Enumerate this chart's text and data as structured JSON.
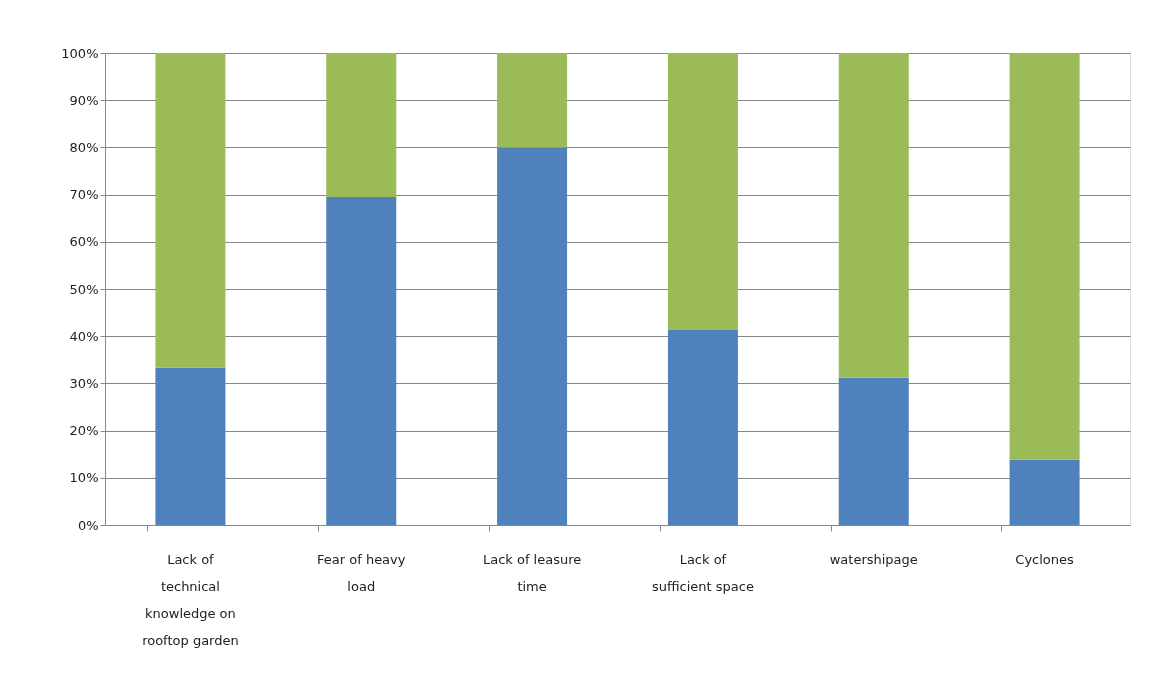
{
  "chart_data": {
    "type": "bar",
    "stacked": true,
    "categories": [
      "Lack of technical knowledge on rooftop garden",
      "Fear of heavy load",
      "Lack of leasure time",
      "Lack of sufficient space",
      "watershipage",
      "Cyclones"
    ],
    "series": [
      {
        "color": "#4f81bd",
        "values": [
          33.3,
          69.5,
          80,
          41.3,
          31.2,
          13.8
        ]
      },
      {
        "color": "#9bbb59",
        "values": [
          66.7,
          30.5,
          20,
          58.7,
          68.8,
          86.2
        ]
      }
    ],
    "ylim": [
      0,
      100
    ],
    "yticks": [
      {
        "value": 0,
        "label": "0%"
      },
      {
        "value": 10,
        "label": "10%"
      },
      {
        "value": 20,
        "label": "20%"
      },
      {
        "value": 30,
        "label": "30%"
      },
      {
        "value": 40,
        "label": "40%"
      },
      {
        "value": 50,
        "label": "50%"
      },
      {
        "value": 60,
        "label": "60%"
      },
      {
        "value": 70,
        "label": "70%"
      },
      {
        "value": 80,
        "label": "80%"
      },
      {
        "value": 90,
        "label": "90%"
      },
      {
        "value": 100,
        "label": "100%"
      }
    ],
    "grid": "y"
  }
}
